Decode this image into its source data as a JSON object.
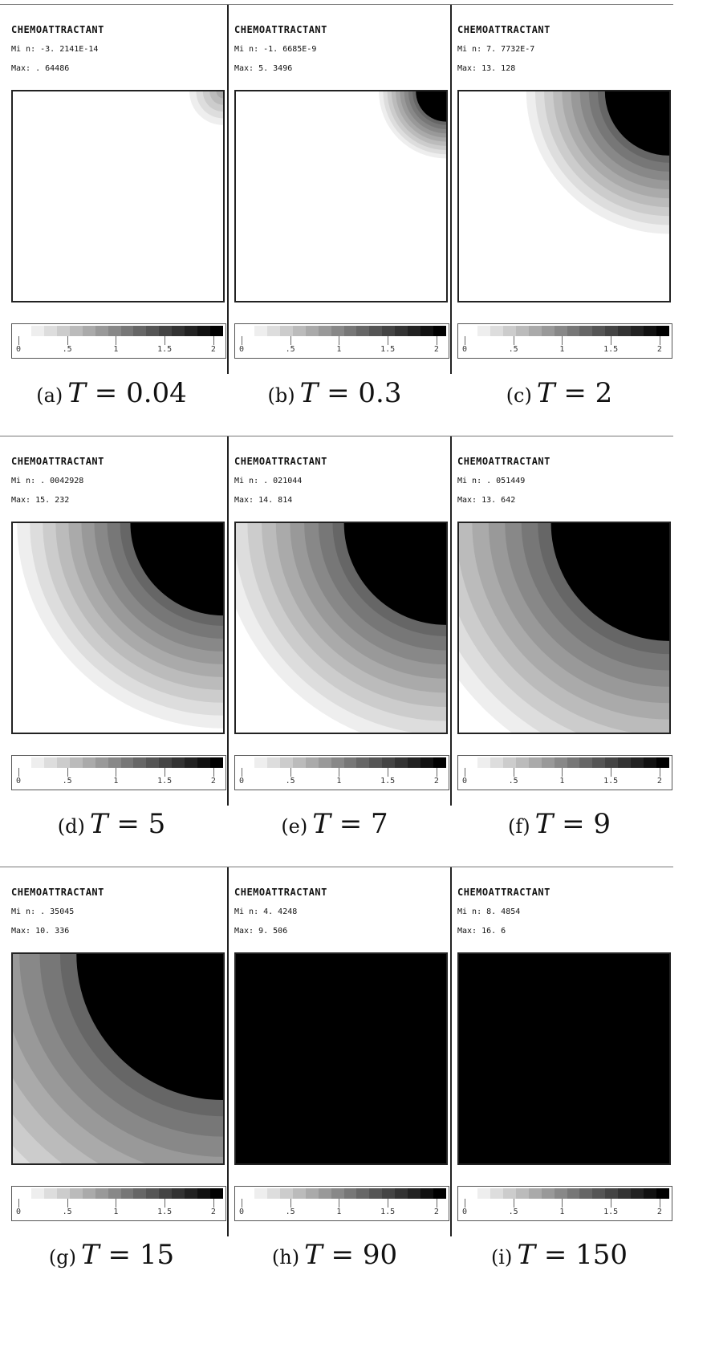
{
  "panels": [
    {
      "title": "CHEMOATTRACTANT",
      "min_label": "Mi n:",
      "min": "-3. 2141E-14",
      "max_label": "Max:",
      "max": ". 64486",
      "caption_letter": "(a)",
      "caption_var": "T",
      "caption_value": "0.04",
      "field_extent": 0.16,
      "field_max_level": 5
    },
    {
      "title": "CHEMOATTRACTANT",
      "min_label": "Mi n:",
      "min": "-1. 6685E-9",
      "max_label": "Max:",
      "max": "5. 3496",
      "caption_letter": "(b)",
      "caption_var": "T",
      "caption_value": "0.3",
      "field_extent": 0.32,
      "field_max_level": 16
    },
    {
      "title": "CHEMOATTRACTANT",
      "min_label": "Mi n:",
      "min": "7. 7732E-7",
      "max_label": "Max:",
      "max": "13. 128",
      "caption_letter": "(c)",
      "caption_var": "T",
      "caption_value": "2",
      "field_extent": 0.68,
      "field_max_level": 16
    },
    {
      "title": "CHEMOATTRACTANT",
      "min_label": "Mi n:",
      "min": ". 0042928",
      "max_label": "Max:",
      "max": "15. 232",
      "caption_letter": "(d)",
      "caption_var": "T",
      "caption_value": "5",
      "field_extent": 0.98,
      "field_max_level": 16
    },
    {
      "title": "CHEMOATTRACTANT",
      "min_label": "Mi n:",
      "min": ". 021044",
      "max_label": "Max:",
      "max": "14. 814",
      "caption_letter": "(e)",
      "caption_var": "T",
      "caption_value": "7",
      "field_extent": 1.08,
      "field_max_level": 16
    },
    {
      "title": "CHEMOATTRACTANT",
      "min_label": "Mi n:",
      "min": ". 051449",
      "max_label": "Max:",
      "max": "13. 642",
      "caption_letter": "(f)",
      "caption_var": "T",
      "caption_value": "9",
      "field_extent": 1.25,
      "field_max_level": 16
    },
    {
      "title": "CHEMOATTRACTANT",
      "min_label": "Mi n:",
      "min": ". 35045",
      "max_label": "Max:",
      "max": "10. 336",
      "caption_letter": "(g)",
      "caption_var": "T",
      "caption_value": "15",
      "field_extent": 1.55,
      "field_max_level": 16
    },
    {
      "title": "CHEMOATTRACTANT",
      "min_label": "Mi n:",
      "min": "4. 4248",
      "max_label": "Max:",
      "max": "9. 506",
      "caption_letter": "(h)",
      "caption_var": "T",
      "caption_value": "90",
      "field_extent": 0,
      "field_max_level": 16
    },
    {
      "title": "CHEMOATTRACTANT",
      "min_label": "Mi n:",
      "min": "8. 4854",
      "max_label": "Max:",
      "max": "16. 6",
      "caption_letter": "(i)",
      "caption_var": "T",
      "caption_value": "150",
      "field_extent": 0,
      "field_max_level": 16
    }
  ],
  "colorbar": {
    "tick_labels": [
      "0",
      ".5",
      "1",
      "1.5",
      "2"
    ],
    "tick_values": [
      0,
      0.5,
      1,
      1.5,
      2
    ],
    "range": [
      0,
      2.1
    ],
    "levels": 16,
    "color_low": "#ffffff",
    "color_high": "#000000"
  }
}
